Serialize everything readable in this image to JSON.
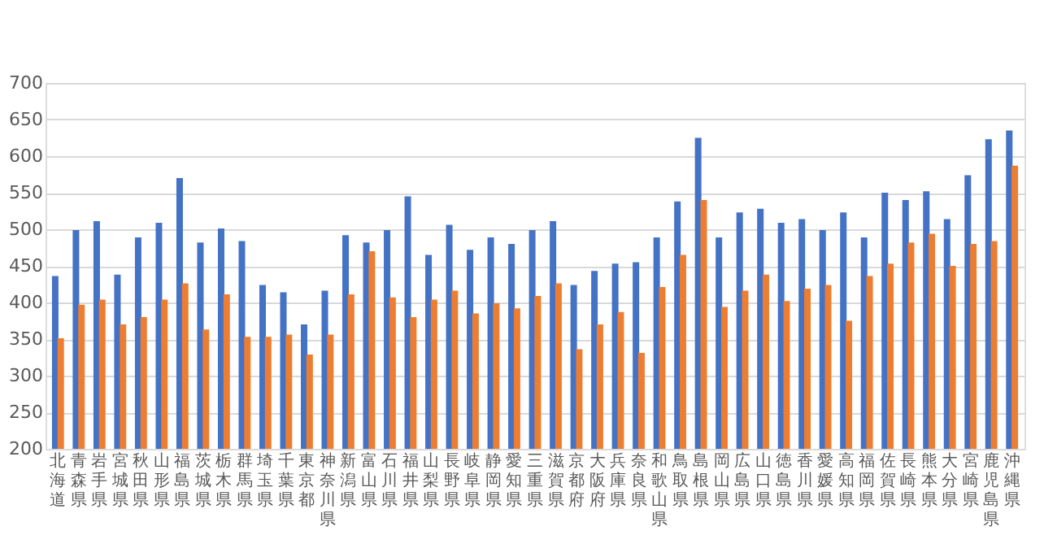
{
  "chart_data": {
    "type": "bar",
    "categories": [
      "北海道",
      "青森県",
      "岩手県",
      "宮城県",
      "秋田県",
      "山形県",
      "福島県",
      "茨城県",
      "栃木県",
      "群馬県",
      "埼玉県",
      "千葉県",
      "東京都",
      "神奈川県",
      "新潟県",
      "富山県",
      "石川県",
      "福井県",
      "山梨県",
      "長野県",
      "岐阜県",
      "静岡県",
      "愛知県",
      "三重県",
      "滋賀県",
      "京都府",
      "大阪府",
      "兵庫県",
      "奈良県",
      "和歌山県",
      "鳥取県",
      "島根県",
      "岡山県",
      "広島県",
      "山口県",
      "徳島県",
      "香川県",
      "愛媛県",
      "高知県",
      "福岡県",
      "佐賀県",
      "長崎県",
      "熊本県",
      "大分県",
      "宮崎県",
      "鹿児島県",
      "沖縄県"
    ],
    "series": [
      {
        "color": "#4472c4",
        "values": [
          436,
          499,
          511,
          438,
          489,
          509,
          570,
          482,
          501,
          484,
          424,
          414,
          370,
          416,
          492,
          482,
          499,
          545,
          465,
          506,
          472,
          489,
          480,
          499,
          511,
          424,
          443,
          453,
          455,
          489,
          538,
          625,
          489,
          523,
          528,
          509,
          514,
          499,
          523,
          489,
          550,
          540,
          552,
          514,
          574,
          623,
          635
        ]
      },
      {
        "color": "#ed7d31",
        "values": [
          351,
          397,
          404,
          370,
          380,
          404,
          426,
          363,
          411,
          353,
          353,
          356,
          329,
          356,
          411,
          470,
          407,
          380,
          404,
          416,
          385,
          399,
          392,
          409,
          426,
          336,
          370,
          387,
          331,
          421,
          465,
          540,
          394,
          416,
          438,
          402,
          419,
          424,
          375,
          436,
          453,
          482,
          494,
          450,
          480,
          484,
          587
        ]
      }
    ],
    "ylim": [
      200,
      700
    ],
    "yticks": [
      200,
      250,
      300,
      350,
      400,
      450,
      500,
      550,
      600,
      650,
      700
    ],
    "grid": "y",
    "legend": false
  }
}
